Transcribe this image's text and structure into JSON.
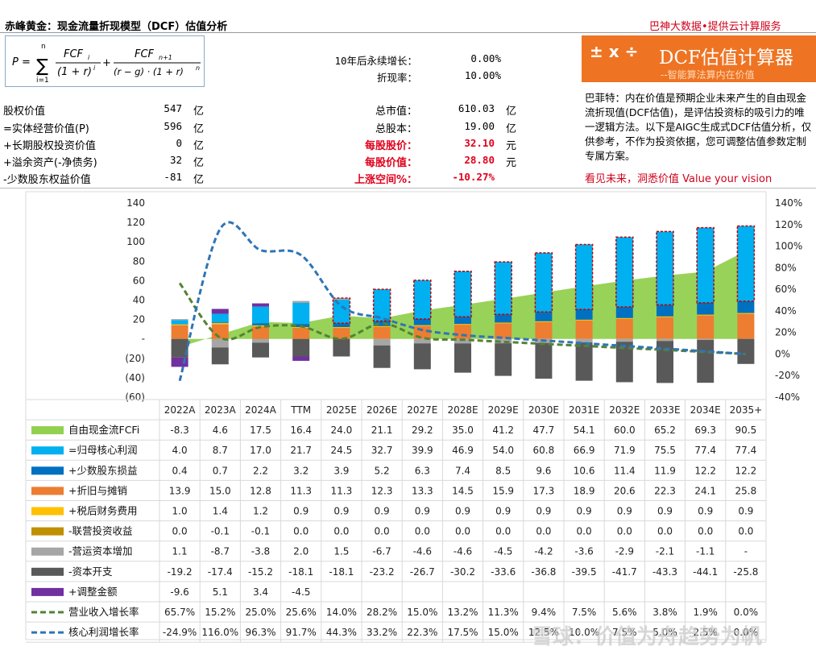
{
  "header": {
    "title": "赤峰黄金：现金流量折现模型（DCF）估值分析",
    "brand": "巴神大数据•提供云计算服务"
  },
  "formula": {
    "lhs": "P =",
    "term1_num": "FCF",
    "term1_num_sub": "i",
    "term1_den": "(1 + r)",
    "term1_den_sup": "i",
    "term2_num": "FCF",
    "term2_num_sub": "n+1",
    "term2_den": "(r − g) · (1 + r)",
    "term2_den_sup": "n",
    "sum_top": "n",
    "sum_bottom": "i=1"
  },
  "params": {
    "growth_label": "10年后永续增长：",
    "growth_value": "0.00%",
    "discount_label": "折现率：",
    "discount_value": "10.00%"
  },
  "left_values": [
    {
      "label": "股权价值",
      "value": "547",
      "unit": "亿"
    },
    {
      "label": "=实体经营价值(P)",
      "value": "596",
      "unit": "亿"
    },
    {
      "label": "+长期股权投资价值",
      "value": "0",
      "unit": "亿"
    },
    {
      "label": "+溢余资产(-净债务)",
      "value": "32",
      "unit": "亿"
    },
    {
      "label": "-少数股东权益价值",
      "value": "-81",
      "unit": "亿"
    }
  ],
  "mid_values": [
    {
      "label": "总市值：",
      "value": "610.03",
      "unit": "亿",
      "highlight": false
    },
    {
      "label": "总股本：",
      "value": "19.00",
      "unit": "亿",
      "highlight": false
    },
    {
      "label": "每股股价：",
      "value": "32.10",
      "unit": "元",
      "highlight": true
    },
    {
      "label": "每股价值：",
      "value": "28.80",
      "unit": "元",
      "highlight": true
    },
    {
      "label": "上涨空间%：",
      "value": "-10.27%",
      "unit": "",
      "highlight": true
    }
  ],
  "banner": {
    "icons": "± x ÷",
    "title": "DCF估值计算器",
    "subtitle": "--智能算法算内在价值"
  },
  "quote": "巴菲特：内在价值是预期企业未来产生的自由现金流折现值(DCF估值)，是评估投资标的吸引力的唯一逻辑方法。以下是AIGC生成式DCF估值分析，仅供参考，不作为投资依据，您可调整估值参数定制专属方案。",
  "slogan": "看见未来，洞悉价值 Value your vision",
  "watermark": "雪球：价值为舟趋势为帆",
  "colors": {
    "fcf": "#92d050",
    "net_profit": "#00b0f0",
    "minority": "#0070c0",
    "depreciation": "#ed7d31",
    "interest": "#ffc000",
    "jv": "#bf9000",
    "working_capital": "#a6a6a6",
    "capex": "#595959",
    "adjust": "#7030a0",
    "revenue_growth": "#548235",
    "profit_growth": "#2e75b6",
    "forecast_border": "#c00000"
  },
  "chart_data": {
    "type": "bar",
    "categories": [
      "2022A",
      "2023A",
      "2024A",
      "TTM",
      "2025E",
      "2026E",
      "2027E",
      "2028E",
      "2029E",
      "2030E",
      "2031E",
      "2032E",
      "2033E",
      "2034E",
      "2035+"
    ],
    "forecast_start_index": 4,
    "ylim_left": [
      -60,
      140
    ],
    "yticks_left": [
      "140",
      "120",
      "100",
      "80",
      "60",
      "40",
      "20",
      "-",
      "(20)",
      "(40)",
      "(60)"
    ],
    "ylim_right": [
      -40,
      140
    ],
    "yticks_right": [
      "140%",
      "120%",
      "100%",
      "80%",
      "60%",
      "40%",
      "20%",
      "0%",
      "-20%",
      "-40%"
    ],
    "series": [
      {
        "key": "fcf",
        "name": "自由现金流FCFi",
        "kind": "area",
        "display": [
          "-8.3",
          "4.6",
          "17.5",
          "16.4",
          "24.0",
          "21.1",
          "29.2",
          "35.0",
          "41.2",
          "47.7",
          "54.1",
          "60.0",
          "65.2",
          "69.3",
          "90.5"
        ],
        "values": [
          -8.3,
          4.6,
          17.5,
          16.4,
          24.0,
          21.1,
          29.2,
          35.0,
          41.2,
          47.7,
          54.1,
          60.0,
          65.2,
          69.3,
          90.5
        ]
      },
      {
        "key": "net_profit",
        "name": "=归母核心利润",
        "kind": "bar",
        "display": [
          "4.0",
          "8.7",
          "17.0",
          "21.7",
          "24.5",
          "32.7",
          "39.9",
          "46.9",
          "54.0",
          "60.8",
          "66.9",
          "71.9",
          "75.5",
          "77.4",
          "77.4"
        ],
        "values": [
          4.0,
          8.7,
          17.0,
          21.7,
          24.5,
          32.7,
          39.9,
          46.9,
          54.0,
          60.8,
          66.9,
          71.9,
          75.5,
          77.4,
          77.4
        ]
      },
      {
        "key": "minority",
        "name": "+少数股东损益",
        "kind": "bar",
        "display": [
          "0.4",
          "0.7",
          "2.2",
          "3.2",
          "3.9",
          "5.2",
          "6.3",
          "7.4",
          "8.5",
          "9.6",
          "10.6",
          "11.4",
          "11.9",
          "12.2",
          "12.2"
        ],
        "values": [
          0.4,
          0.7,
          2.2,
          3.2,
          3.9,
          5.2,
          6.3,
          7.4,
          8.5,
          9.6,
          10.6,
          11.4,
          11.9,
          12.2,
          12.2
        ]
      },
      {
        "key": "depreciation",
        "name": "+折旧与摊销",
        "kind": "bar",
        "display": [
          "13.9",
          "15.0",
          "12.8",
          "11.3",
          "11.3",
          "12.3",
          "13.3",
          "14.5",
          "15.9",
          "17.3",
          "18.9",
          "20.6",
          "22.3",
          "24.1",
          "25.8"
        ],
        "values": [
          13.9,
          15.0,
          12.8,
          11.3,
          11.3,
          12.3,
          13.3,
          14.5,
          15.9,
          17.3,
          18.9,
          20.6,
          22.3,
          24.1,
          25.8
        ]
      },
      {
        "key": "interest",
        "name": "+税后财务费用",
        "kind": "bar",
        "display": [
          "1.0",
          "1.4",
          "1.2",
          "0.9",
          "0.9",
          "0.9",
          "0.9",
          "0.9",
          "0.9",
          "0.9",
          "0.9",
          "0.9",
          "0.9",
          "0.9",
          "0.9"
        ],
        "values": [
          1.0,
          1.4,
          1.2,
          0.9,
          0.9,
          0.9,
          0.9,
          0.9,
          0.9,
          0.9,
          0.9,
          0.9,
          0.9,
          0.9,
          0.9
        ]
      },
      {
        "key": "jv",
        "name": "-联营投资收益",
        "kind": "bar",
        "display": [
          "0.0",
          "-0.1",
          "-0.1",
          "0.0",
          "0.0",
          "0.0",
          "0.0",
          "0.0",
          "0.0",
          "0.0",
          "0.0",
          "0.0",
          "0.0",
          "0.0",
          "0.0"
        ],
        "values": [
          0.0,
          -0.1,
          -0.1,
          0.0,
          0.0,
          0.0,
          0.0,
          0.0,
          0.0,
          0.0,
          0.0,
          0.0,
          0.0,
          0.0,
          0.0
        ]
      },
      {
        "key": "working_capital",
        "name": "-营运资本增加",
        "kind": "bar",
        "display": [
          "1.1",
          "-8.7",
          "-3.8",
          "2.0",
          "1.5",
          "-6.7",
          "-4.6",
          "-4.6",
          "-4.5",
          "-4.2",
          "-3.6",
          "-2.9",
          "-2.1",
          "-1.1",
          "-"
        ],
        "values": [
          1.1,
          -8.7,
          -3.8,
          2.0,
          1.5,
          -6.7,
          -4.6,
          -4.6,
          -4.5,
          -4.2,
          -3.6,
          -2.9,
          -2.1,
          -1.1,
          0
        ]
      },
      {
        "key": "capex",
        "name": "-资本开支",
        "kind": "bar",
        "display": [
          "-19.2",
          "-17.4",
          "-15.2",
          "-18.1",
          "-18.1",
          "-23.2",
          "-26.7",
          "-30.2",
          "-33.6",
          "-36.8",
          "-39.5",
          "-41.7",
          "-43.3",
          "-44.1",
          "-25.8"
        ],
        "values": [
          -19.2,
          -17.4,
          -15.2,
          -18.1,
          -18.1,
          -23.2,
          -26.7,
          -30.2,
          -33.6,
          -36.8,
          -39.5,
          -41.7,
          -43.3,
          -44.1,
          -25.8
        ]
      },
      {
        "key": "adjust",
        "name": "+调整金额",
        "kind": "bar",
        "display": [
          "-9.6",
          "5.1",
          "3.4",
          "-4.5",
          "",
          "",
          "",
          "",
          "",
          "",
          "",
          "",
          "",
          "",
          ""
        ],
        "values": [
          -9.6,
          5.1,
          3.4,
          -4.5,
          0,
          0,
          0,
          0,
          0,
          0,
          0,
          0,
          0,
          0,
          0
        ]
      },
      {
        "key": "revenue_growth",
        "name": "营业收入增长率",
        "kind": "line",
        "axis": "right",
        "display": [
          "65.7%",
          "15.2%",
          "25.0%",
          "25.6%",
          "14.0%",
          "28.2%",
          "15.0%",
          "13.2%",
          "11.3%",
          "9.4%",
          "7.5%",
          "5.6%",
          "3.8%",
          "1.9%",
          "0.0%"
        ],
        "values": [
          65.7,
          15.2,
          25.0,
          25.6,
          14.0,
          28.2,
          15.0,
          13.2,
          11.3,
          9.4,
          7.5,
          5.6,
          3.8,
          1.9,
          0.0
        ]
      },
      {
        "key": "profit_growth",
        "name": "核心利润增长率",
        "kind": "line",
        "axis": "right",
        "display": [
          "-24.9%",
          "116.0%",
          "96.3%",
          "91.7%",
          "44.3%",
          "33.2%",
          "22.3%",
          "17.5%",
          "15.0%",
          "12.5%",
          "10.0%",
          "7.5%",
          "5.0%",
          "2.5%",
          "0.0%"
        ],
        "values": [
          -24.9,
          116.0,
          96.3,
          91.7,
          44.3,
          33.2,
          22.3,
          17.5,
          15.0,
          12.5,
          10.0,
          7.5,
          5.0,
          2.5,
          0.0
        ]
      }
    ]
  }
}
